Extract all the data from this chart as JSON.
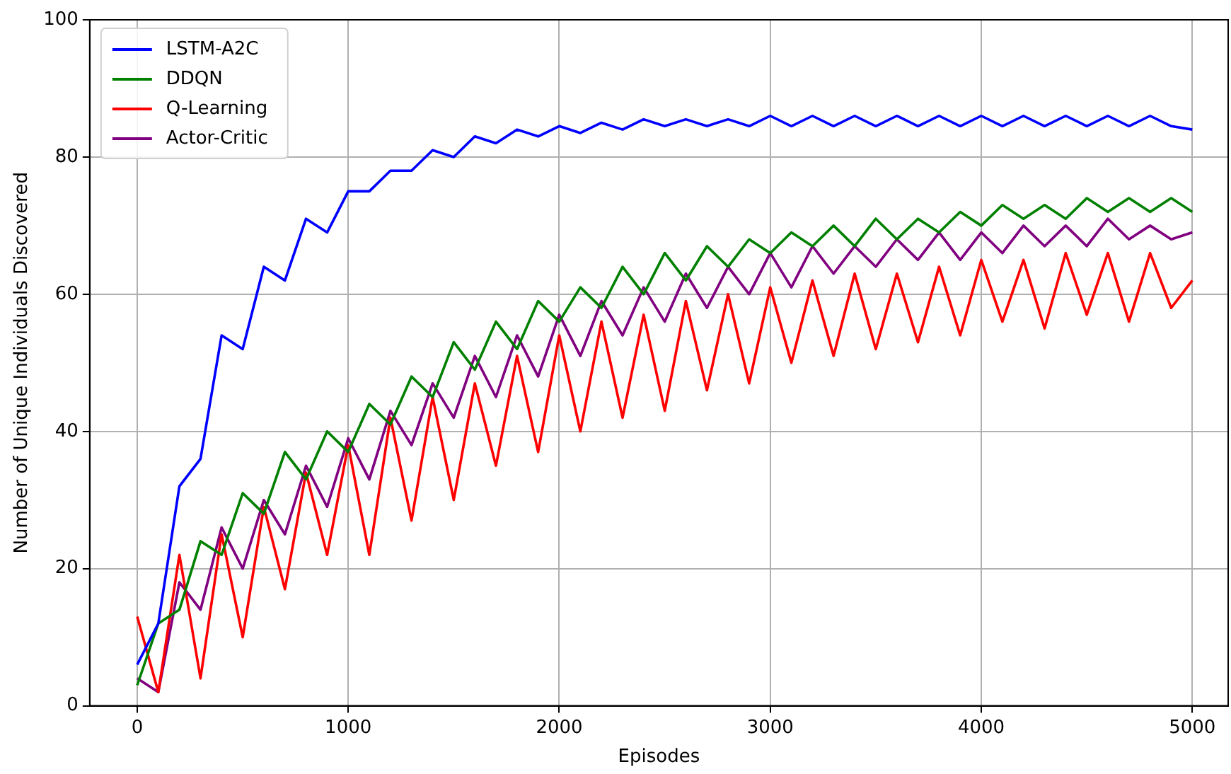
{
  "chart_data": {
    "type": "line",
    "xlabel": "Episodes",
    "ylabel": "Number of Unique Individuals Discovered",
    "x": [
      0,
      100,
      200,
      300,
      400,
      500,
      600,
      700,
      800,
      900,
      1000,
      1100,
      1200,
      1300,
      1400,
      1500,
      1600,
      1700,
      1800,
      1900,
      2000,
      2100,
      2200,
      2300,
      2400,
      2500,
      2600,
      2700,
      2800,
      2900,
      3000,
      3100,
      3200,
      3300,
      3400,
      3500,
      3600,
      3700,
      3800,
      3900,
      4000,
      4100,
      4200,
      4300,
      4400,
      4500,
      4600,
      4700,
      4800,
      4900,
      5000
    ],
    "series": [
      {
        "name": "LSTM-A2C",
        "color": "#0000ff",
        "values": [
          6,
          12,
          32,
          36,
          54,
          52,
          64,
          62,
          71,
          69,
          75,
          75,
          78,
          78,
          81,
          80,
          83,
          82,
          84,
          83,
          84.5,
          83.5,
          85,
          84,
          85.5,
          84.5,
          85.5,
          84.5,
          85.5,
          84.5,
          86,
          84.5,
          86,
          84.5,
          86,
          84.5,
          86,
          84.5,
          86,
          84.5,
          86,
          84.5,
          86,
          84.5,
          86,
          84.5,
          86,
          84.5,
          86,
          84.5,
          84
        ]
      },
      {
        "name": "DDQN",
        "color": "#008000",
        "values": [
          3,
          12,
          14,
          24,
          22,
          31,
          28,
          37,
          33,
          40,
          37,
          44,
          41,
          48,
          45,
          53,
          49,
          56,
          52,
          59,
          56,
          61,
          58,
          64,
          60,
          66,
          62,
          67,
          64,
          68,
          66,
          69,
          67,
          70,
          67,
          71,
          68,
          71,
          69,
          72,
          70,
          73,
          71,
          73,
          71,
          74,
          72,
          74,
          72,
          74,
          72
        ]
      },
      {
        "name": "Q-Learning",
        "color": "#ff0000",
        "values": [
          13,
          2,
          22,
          4,
          25,
          10,
          29,
          17,
          34,
          22,
          38,
          22,
          42,
          27,
          45,
          30,
          47,
          35,
          51,
          37,
          54,
          40,
          56,
          42,
          57,
          43,
          59,
          46,
          60,
          47,
          61,
          50,
          62,
          51,
          63,
          52,
          63,
          53,
          64,
          54,
          65,
          56,
          65,
          55,
          66,
          57,
          66,
          56,
          66,
          58,
          62
        ]
      },
      {
        "name": "Actor-Critic",
        "color": "#800080",
        "values": [
          4,
          2,
          18,
          14,
          26,
          20,
          30,
          25,
          35,
          29,
          39,
          33,
          43,
          38,
          47,
          42,
          51,
          45,
          54,
          48,
          57,
          51,
          59,
          54,
          61,
          56,
          63,
          58,
          64,
          60,
          66,
          61,
          67,
          63,
          67,
          64,
          68,
          65,
          69,
          65,
          69,
          66,
          70,
          67,
          70,
          67,
          71,
          68,
          70,
          68,
          69
        ]
      }
    ],
    "xlim": [
      -225,
      5170
    ],
    "xticks": [
      0,
      1000,
      2000,
      3000,
      4000,
      5000
    ],
    "ylim": [
      0,
      100
    ],
    "yticks": [
      0,
      20,
      40,
      60,
      80,
      100
    ],
    "grid": true,
    "legend": "top left",
    "marker": "none",
    "line_style": "solid"
  }
}
